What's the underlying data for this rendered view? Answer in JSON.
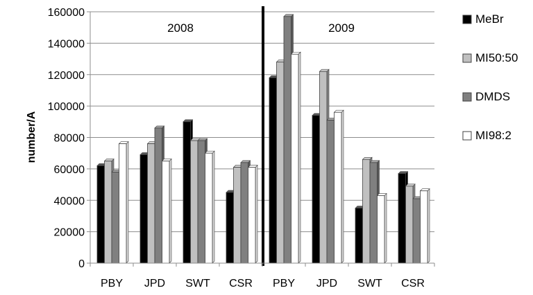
{
  "chart_data": {
    "type": "bar",
    "title": "",
    "xlabel": "",
    "ylabel": "number/A",
    "ylim": [
      0,
      160000
    ],
    "ytick_step": 20000,
    "grid": true,
    "legend_position": "right",
    "categories": [
      "PBY",
      "JPD",
      "SWT",
      "CSR",
      "PBY",
      "JPD",
      "SWT",
      "CSR"
    ],
    "groups": [
      {
        "label": "2008",
        "categories": [
          "PBY",
          "JPD",
          "SWT",
          "CSR"
        ]
      },
      {
        "label": "2009",
        "categories": [
          "PBY",
          "JPD",
          "SWT",
          "CSR"
        ]
      }
    ],
    "series": [
      {
        "name": "MeBr",
        "color": "#000000",
        "values": [
          62000,
          69000,
          90000,
          45000,
          118000,
          94000,
          35000,
          57000
        ]
      },
      {
        "name": "MI50:50",
        "color": "#c0c0c0",
        "values": [
          65000,
          76000,
          78000,
          61000,
          128000,
          122000,
          66000,
          49000
        ]
      },
      {
        "name": "DMDS",
        "color": "#808080",
        "values": [
          58000,
          86000,
          78000,
          64000,
          157000,
          91000,
          64000,
          41000
        ]
      },
      {
        "name": "MI98:2",
        "color": "#ffffff",
        "values": [
          76000,
          65000,
          70000,
          61000,
          133000,
          96000,
          43000,
          46000
        ]
      }
    ]
  }
}
